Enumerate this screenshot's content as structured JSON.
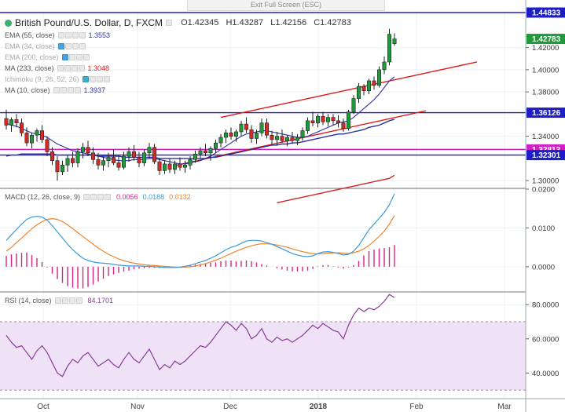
{
  "exit_label": "Exit Full Screen (ESC)",
  "header": {
    "symbol": "British Pound/U.S. Dollar, D, FXCM",
    "open": "O1.42345",
    "high": "H1.43287",
    "low": "L1.42156",
    "close": "C1.42783"
  },
  "legends": {
    "ema55": {
      "name": "EMA (55, close)",
      "value": "1.3553",
      "color": "#2a2fa0"
    },
    "ema34": {
      "name": "EMA (34, close)",
      "value": "",
      "color": "#888888"
    },
    "ema200": {
      "name": "EMA (200, close)",
      "value": "",
      "color": "#888888"
    },
    "ma233": {
      "name": "MA (233, close)",
      "value": "1.3048",
      "color": "#d22222"
    },
    "ichimoku": {
      "name": "Ichimoku (9, 26, 52, 26)",
      "value": "",
      "color": "#888888"
    },
    "ma10": {
      "name": "MA (10, close)",
      "value": "1.3937",
      "color": "#2a2fa0"
    },
    "macd": {
      "name": "MACD (12, 26, close, 9)",
      "hist": "0.0056",
      "macd": "0.0188",
      "signal": "0.0132",
      "hist_color": "#d6247f",
      "macd_color": "#3a9ad9",
      "signal_color": "#f0832b"
    },
    "rsi": {
      "name": "RSI (14, close)",
      "value": "84.1701",
      "color": "#8a3c9c"
    }
  },
  "price_labels": {
    "top": "1.44833",
    "last": "1.42783",
    "level1": "1.36126",
    "level2": "1.32813",
    "level3": "1.32301"
  },
  "chart_data": {
    "type": "candlestick",
    "price_axis": {
      "ylim": [
        1.293,
        1.453
      ],
      "ticks": [
        "1.42000",
        "1.40000",
        "1.38000",
        "1.34000",
        "1.30000"
      ]
    },
    "macd_axis": {
      "ylim": [
        -0.0065,
        0.02
      ],
      "ticks": [
        "0.0200",
        "0.0100",
        "0.0000"
      ]
    },
    "rsi_axis": {
      "ylim": [
        25,
        87
      ],
      "ticks": [
        "80.0000",
        "60.0000",
        "40.0000"
      ],
      "band": [
        30,
        70
      ]
    },
    "time_labels": [
      "Oct",
      "Nov",
      "Dec",
      "2018",
      "Feb",
      "Mar"
    ],
    "candles": [
      [
        1.356,
        1.364,
        1.346,
        1.35
      ],
      [
        1.35,
        1.357,
        1.344,
        1.355
      ],
      [
        1.355,
        1.36,
        1.348,
        1.352
      ],
      [
        1.352,
        1.356,
        1.34,
        1.343
      ],
      [
        1.343,
        1.348,
        1.331,
        1.334
      ],
      [
        1.334,
        1.343,
        1.329,
        1.341
      ],
      [
        1.341,
        1.347,
        1.335,
        1.345
      ],
      [
        1.345,
        1.35,
        1.334,
        1.337
      ],
      [
        1.337,
        1.34,
        1.322,
        1.326
      ],
      [
        1.326,
        1.33,
        1.314,
        1.318
      ],
      [
        1.318,
        1.322,
        1.3,
        1.308
      ],
      [
        1.308,
        1.318,
        1.305,
        1.314
      ],
      [
        1.314,
        1.323,
        1.308,
        1.32
      ],
      [
        1.32,
        1.326,
        1.312,
        1.316
      ],
      [
        1.316,
        1.329,
        1.312,
        1.326
      ],
      [
        1.326,
        1.334,
        1.32,
        1.33
      ],
      [
        1.33,
        1.336,
        1.322,
        1.325
      ],
      [
        1.325,
        1.33,
        1.315,
        1.319
      ],
      [
        1.319,
        1.325,
        1.31,
        1.314
      ],
      [
        1.314,
        1.322,
        1.309,
        1.318
      ],
      [
        1.318,
        1.325,
        1.312,
        1.321
      ],
      [
        1.321,
        1.328,
        1.314,
        1.316
      ],
      [
        1.316,
        1.322,
        1.309,
        1.312
      ],
      [
        1.312,
        1.326,
        1.31,
        1.322
      ],
      [
        1.322,
        1.33,
        1.317,
        1.326
      ],
      [
        1.326,
        1.332,
        1.318,
        1.321
      ],
      [
        1.321,
        1.326,
        1.312,
        1.316
      ],
      [
        1.316,
        1.328,
        1.313,
        1.325
      ],
      [
        1.325,
        1.334,
        1.32,
        1.33
      ],
      [
        1.33,
        1.333,
        1.315,
        1.317
      ],
      [
        1.317,
        1.32,
        1.305,
        1.309
      ],
      [
        1.309,
        1.318,
        1.306,
        1.315
      ],
      [
        1.315,
        1.32,
        1.307,
        1.31
      ],
      [
        1.31,
        1.318,
        1.306,
        1.315
      ],
      [
        1.315,
        1.321,
        1.309,
        1.312
      ],
      [
        1.312,
        1.318,
        1.307,
        1.314
      ],
      [
        1.314,
        1.322,
        1.31,
        1.319
      ],
      [
        1.319,
        1.327,
        1.316,
        1.324
      ],
      [
        1.324,
        1.33,
        1.32,
        1.327
      ],
      [
        1.327,
        1.333,
        1.322,
        1.325
      ],
      [
        1.325,
        1.331,
        1.318,
        1.329
      ],
      [
        1.329,
        1.337,
        1.325,
        1.334
      ],
      [
        1.334,
        1.342,
        1.33,
        1.339
      ],
      [
        1.339,
        1.346,
        1.334,
        1.343
      ],
      [
        1.343,
        1.348,
        1.337,
        1.34
      ],
      [
        1.34,
        1.346,
        1.335,
        1.344
      ],
      [
        1.344,
        1.354,
        1.34,
        1.351
      ],
      [
        1.351,
        1.357,
        1.343,
        1.346
      ],
      [
        1.346,
        1.35,
        1.334,
        1.338
      ],
      [
        1.338,
        1.346,
        1.333,
        1.343
      ],
      [
        1.343,
        1.356,
        1.34,
        1.352
      ],
      [
        1.352,
        1.356,
        1.338,
        1.341
      ],
      [
        1.341,
        1.345,
        1.333,
        1.337
      ],
      [
        1.337,
        1.344,
        1.332,
        1.34
      ],
      [
        1.34,
        1.346,
        1.334,
        1.336
      ],
      [
        1.336,
        1.341,
        1.331,
        1.339
      ],
      [
        1.339,
        1.344,
        1.333,
        1.336
      ],
      [
        1.336,
        1.342,
        1.332,
        1.339
      ],
      [
        1.339,
        1.348,
        1.336,
        1.345
      ],
      [
        1.345,
        1.357,
        1.342,
        1.354
      ],
      [
        1.354,
        1.362,
        1.349,
        1.352
      ],
      [
        1.352,
        1.36,
        1.348,
        1.358
      ],
      [
        1.358,
        1.362,
        1.35,
        1.353
      ],
      [
        1.353,
        1.36,
        1.349,
        1.357
      ],
      [
        1.357,
        1.36,
        1.35,
        1.354
      ],
      [
        1.354,
        1.359,
        1.348,
        1.352
      ],
      [
        1.352,
        1.356,
        1.344,
        1.347
      ],
      [
        1.347,
        1.364,
        1.345,
        1.362
      ],
      [
        1.362,
        1.377,
        1.36,
        1.374
      ],
      [
        1.374,
        1.388,
        1.37,
        1.385
      ],
      [
        1.385,
        1.387,
        1.377,
        1.381
      ],
      [
        1.381,
        1.392,
        1.378,
        1.39
      ],
      [
        1.39,
        1.394,
        1.382,
        1.386
      ],
      [
        1.386,
        1.403,
        1.384,
        1.4
      ],
      [
        1.4,
        1.412,
        1.396,
        1.407
      ],
      [
        1.407,
        1.437,
        1.404,
        1.432
      ],
      [
        1.4235,
        1.4329,
        1.4216,
        1.4278
      ]
    ],
    "ma10": [
      1.352,
      1.35,
      1.349,
      1.347,
      1.345,
      1.343,
      1.342,
      1.341,
      1.339,
      1.336,
      1.333,
      1.331,
      1.329,
      1.327,
      1.326,
      1.325,
      1.324,
      1.323,
      1.322,
      1.321,
      1.32,
      1.319,
      1.318,
      1.318,
      1.318,
      1.319,
      1.319,
      1.319,
      1.32,
      1.32,
      1.319,
      1.318,
      1.317,
      1.316,
      1.315,
      1.315,
      1.316,
      1.317,
      1.318,
      1.32,
      1.322,
      1.325,
      1.328,
      1.331,
      1.334,
      1.337,
      1.34,
      1.342,
      1.343,
      1.344,
      1.345,
      1.345,
      1.344,
      1.343,
      1.342,
      1.341,
      1.34,
      1.339,
      1.339,
      1.34,
      1.342,
      1.344,
      1.346,
      1.348,
      1.35,
      1.352,
      1.353,
      1.354,
      1.357,
      1.361,
      1.365,
      1.369,
      1.373,
      1.378,
      1.384,
      1.39,
      1.3937
    ],
    "ema55": [
      1.322,
      1.323,
      1.323,
      1.324,
      1.324,
      1.324,
      1.324,
      1.324,
      1.324,
      1.324,
      1.323,
      1.323,
      1.323,
      1.323,
      1.323,
      1.323,
      1.323,
      1.323,
      1.322,
      1.322,
      1.322,
      1.322,
      1.322,
      1.321,
      1.321,
      1.321,
      1.321,
      1.321,
      1.321,
      1.321,
      1.32,
      1.32,
      1.32,
      1.32,
      1.32,
      1.32,
      1.32,
      1.32,
      1.32,
      1.32,
      1.321,
      1.321,
      1.322,
      1.323,
      1.324,
      1.325,
      1.326,
      1.327,
      1.328,
      1.329,
      1.33,
      1.331,
      1.332,
      1.332,
      1.333,
      1.333,
      1.334,
      1.334,
      1.335,
      1.336,
      1.337,
      1.338,
      1.339,
      1.34,
      1.341,
      1.342,
      1.342,
      1.343,
      1.344,
      1.345,
      1.346,
      1.348,
      1.349,
      1.35,
      1.352,
      1.354,
      1.3553
    ],
    "ma233": [
      1.28,
      1.281,
      1.282,
      1.283,
      1.284,
      1.285,
      1.286,
      1.287,
      1.288,
      1.289,
      1.29,
      1.291,
      1.292,
      1.293,
      1.294,
      1.295,
      1.296,
      1.297,
      1.298,
      1.299,
      1.3,
      1.301,
      1.302,
      1.3048
    ],
    "macd_line": [
      0.0068,
      0.0082,
      0.0096,
      0.011,
      0.0122,
      0.0128,
      0.013,
      0.0128,
      0.012,
      0.0106,
      0.009,
      0.0074,
      0.0058,
      0.0044,
      0.0032,
      0.0022,
      0.0016,
      0.0012,
      0.001,
      0.0009,
      0.0008,
      0.0006,
      0.0004,
      0.0003,
      0.0002,
      0.0002,
      0.0002,
      0.0001,
      0.0001,
      0.0,
      -0.0001,
      -0.0002,
      -0.0002,
      -0.0002,
      -0.0001,
      0.0001,
      0.0004,
      0.0008,
      0.0012,
      0.0016,
      0.0022,
      0.0028,
      0.0036,
      0.0044,
      0.005,
      0.0054,
      0.006,
      0.0066,
      0.0068,
      0.0068,
      0.0066,
      0.0062,
      0.0058,
      0.0052,
      0.0046,
      0.004,
      0.0034,
      0.003,
      0.0027,
      0.0026,
      0.0028,
      0.0034,
      0.0038,
      0.0039,
      0.0037,
      0.0034,
      0.003,
      0.0032,
      0.004,
      0.0055,
      0.0075,
      0.0095,
      0.011,
      0.0125,
      0.014,
      0.016,
      0.0188
    ],
    "macd_signal": [
      0.004,
      0.005,
      0.0062,
      0.0074,
      0.0086,
      0.0098,
      0.0108,
      0.0116,
      0.0122,
      0.0124,
      0.0122,
      0.0116,
      0.0108,
      0.0098,
      0.0088,
      0.0078,
      0.0068,
      0.0058,
      0.0048,
      0.004,
      0.0032,
      0.0026,
      0.002,
      0.0016,
      0.0012,
      0.0009,
      0.0007,
      0.0005,
      0.0004,
      0.0003,
      0.0002,
      0.0001,
      0.0,
      -0.0001,
      -0.0001,
      -0.0001,
      0.0,
      0.0002,
      0.0005,
      0.0008,
      0.0012,
      0.0017,
      0.0022,
      0.0028,
      0.0034,
      0.004,
      0.0045,
      0.005,
      0.0054,
      0.0057,
      0.0059,
      0.0059,
      0.0058,
      0.0056,
      0.0053,
      0.005,
      0.0046,
      0.0042,
      0.0039,
      0.0036,
      0.0034,
      0.0033,
      0.0034,
      0.0035,
      0.0036,
      0.0036,
      0.0035,
      0.0034,
      0.0036,
      0.004,
      0.0046,
      0.0055,
      0.0066,
      0.0078,
      0.0092,
      0.011,
      0.0132
    ],
    "rsi": [
      62,
      58,
      55,
      56,
      52,
      48,
      53,
      56,
      52,
      46,
      40,
      38,
      44,
      48,
      46,
      50,
      52,
      48,
      44,
      46,
      48,
      45,
      43,
      48,
      52,
      48,
      46,
      50,
      54,
      48,
      42,
      45,
      43,
      47,
      45,
      47,
      50,
      53,
      56,
      55,
      58,
      62,
      66,
      70,
      68,
      65,
      69,
      66,
      60,
      62,
      66,
      60,
      58,
      61,
      59,
      60,
      58,
      60,
      62,
      65,
      68,
      66,
      69,
      67,
      65,
      64,
      60,
      68,
      74,
      78,
      76,
      78,
      77,
      79,
      82,
      86,
      84.17
    ]
  }
}
